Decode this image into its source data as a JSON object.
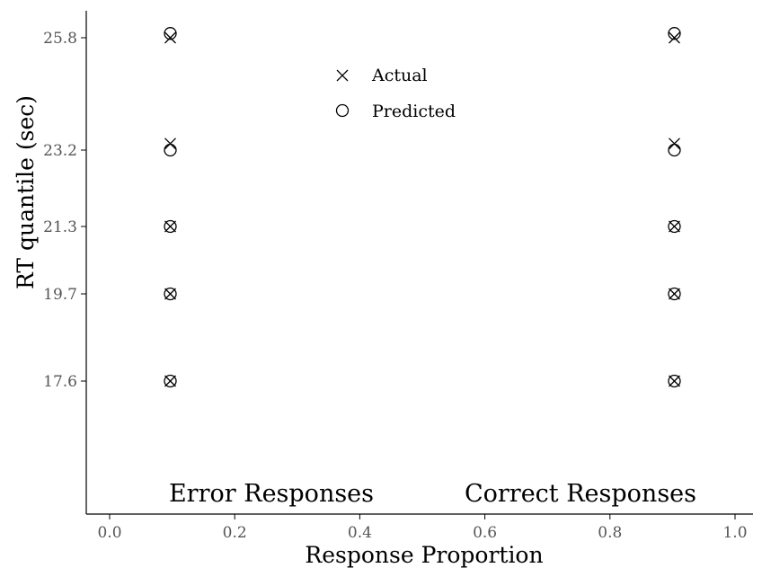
{
  "chart_data": {
    "type": "scatter",
    "xlabel": "Response Proportion",
    "ylabel": "RT quantile (sec)",
    "xlim": [
      0.0,
      1.0
    ],
    "x_ticks": [
      "0.0",
      "0.2",
      "0.4",
      "0.6",
      "0.8",
      "1.0"
    ],
    "y_ticks": [
      "17.6",
      "19.7",
      "21.3",
      "23.2",
      "25.8"
    ],
    "grid": false,
    "legend_position": "top-center",
    "annotations": [
      {
        "text": "Error Responses"
      },
      {
        "text": "Correct Responses"
      }
    ],
    "series": [
      {
        "name": "Actual",
        "marker": "cross",
        "points": [
          {
            "x": 0.097,
            "y": 17.6
          },
          {
            "x": 0.097,
            "y": 19.7
          },
          {
            "x": 0.097,
            "y": 21.3
          },
          {
            "x": 0.097,
            "y": 23.35
          },
          {
            "x": 0.097,
            "y": 25.8
          },
          {
            "x": 0.903,
            "y": 17.6
          },
          {
            "x": 0.903,
            "y": 19.7
          },
          {
            "x": 0.903,
            "y": 21.3
          },
          {
            "x": 0.903,
            "y": 23.35
          },
          {
            "x": 0.903,
            "y": 25.8
          }
        ]
      },
      {
        "name": "Predicted",
        "marker": "circle",
        "points": [
          {
            "x": 0.097,
            "y": 17.6
          },
          {
            "x": 0.097,
            "y": 19.7
          },
          {
            "x": 0.097,
            "y": 21.3
          },
          {
            "x": 0.097,
            "y": 23.2
          },
          {
            "x": 0.097,
            "y": 25.9
          },
          {
            "x": 0.903,
            "y": 17.6
          },
          {
            "x": 0.903,
            "y": 19.7
          },
          {
            "x": 0.903,
            "y": 21.3
          },
          {
            "x": 0.903,
            "y": 23.2
          },
          {
            "x": 0.903,
            "y": 25.9
          }
        ]
      }
    ]
  }
}
